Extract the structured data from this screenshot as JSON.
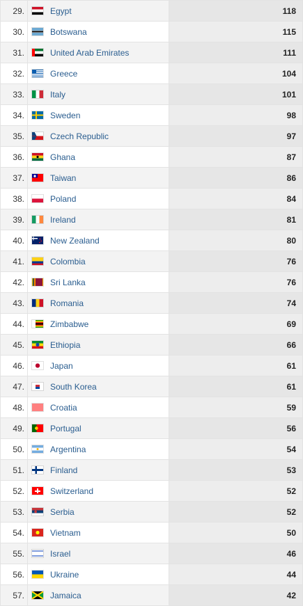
{
  "rows": [
    {
      "rank": "29.",
      "country": "Egypt",
      "value": "118",
      "flag": "egypt-flag-icon",
      "colors": [
        "#ce1126",
        "#ffffff",
        "#000000"
      ]
    },
    {
      "rank": "30.",
      "country": "Botswana",
      "value": "115",
      "flag": "botswana-flag-icon",
      "colors": [
        "#6da9d2",
        "#ffffff",
        "#000000"
      ]
    },
    {
      "rank": "31.",
      "country": "United Arab Emirates",
      "value": "111",
      "flag": "uae-flag-icon",
      "colors": [
        "#ff0000",
        "#00732f",
        "#ffffff",
        "#000000"
      ]
    },
    {
      "rank": "32.",
      "country": "Greece",
      "value": "104",
      "flag": "greece-flag-icon",
      "colors": [
        "#0d5eaf",
        "#ffffff"
      ]
    },
    {
      "rank": "33.",
      "country": "Italy",
      "value": "101",
      "flag": "italy-flag-icon",
      "colors": [
        "#009246",
        "#ffffff",
        "#ce2b37"
      ]
    },
    {
      "rank": "34.",
      "country": "Sweden",
      "value": "98",
      "flag": "sweden-flag-icon",
      "colors": [
        "#006aa7",
        "#fecc00"
      ]
    },
    {
      "rank": "35.",
      "country": "Czech Republic",
      "value": "97",
      "flag": "czech-flag-icon",
      "colors": [
        "#ffffff",
        "#d7141a",
        "#11457e"
      ]
    },
    {
      "rank": "36.",
      "country": "Ghana",
      "value": "87",
      "flag": "ghana-flag-icon",
      "colors": [
        "#ce1126",
        "#fcd116",
        "#006b3f"
      ]
    },
    {
      "rank": "37.",
      "country": "Taiwan",
      "value": "86",
      "flag": "taiwan-flag-icon",
      "colors": [
        "#fe0000",
        "#000095"
      ]
    },
    {
      "rank": "38.",
      "country": "Poland",
      "value": "84",
      "flag": "poland-flag-icon",
      "colors": [
        "#ffffff",
        "#dc143c"
      ]
    },
    {
      "rank": "39.",
      "country": "Ireland",
      "value": "81",
      "flag": "ireland-flag-icon",
      "colors": [
        "#169b62",
        "#ffffff",
        "#ff883e"
      ]
    },
    {
      "rank": "40.",
      "country": "New Zealand",
      "value": "80",
      "flag": "new-zealand-flag-icon",
      "colors": [
        "#012169",
        "#c8102e"
      ]
    },
    {
      "rank": "41.",
      "country": "Colombia",
      "value": "76",
      "flag": "colombia-flag-icon",
      "colors": [
        "#fcd116",
        "#003893",
        "#ce1126"
      ]
    },
    {
      "rank": "42.",
      "country": "Sri Lanka",
      "value": "76",
      "flag": "sri-lanka-flag-icon",
      "colors": [
        "#ffb700",
        "#8d153a",
        "#00534e",
        "#eb7400"
      ]
    },
    {
      "rank": "43.",
      "country": "Romania",
      "value": "74",
      "flag": "romania-flag-icon",
      "colors": [
        "#002b7f",
        "#fcd116",
        "#ce1126"
      ]
    },
    {
      "rank": "44.",
      "country": "Zimbabwe",
      "value": "69",
      "flag": "zimbabwe-flag-icon",
      "colors": [
        "#319208",
        "#ffd200",
        "#de2010",
        "#000000"
      ]
    },
    {
      "rank": "45.",
      "country": "Ethiopia",
      "value": "66",
      "flag": "ethiopia-flag-icon",
      "colors": [
        "#078930",
        "#fcdd09",
        "#da121a"
      ]
    },
    {
      "rank": "46.",
      "country": "Japan",
      "value": "61",
      "flag": "japan-flag-icon",
      "colors": [
        "#ffffff",
        "#bc002d"
      ]
    },
    {
      "rank": "47.",
      "country": "South Korea",
      "value": "61",
      "flag": "south-korea-flag-icon",
      "colors": [
        "#ffffff",
        "#cd2e3a",
        "#0047a0"
      ]
    },
    {
      "rank": "48.",
      "country": "Croatia",
      "value": "59",
      "flag": "croatia-flag-icon",
      "colors": [
        "#ff0000",
        "#ffffff",
        "#171796"
      ]
    },
    {
      "rank": "49.",
      "country": "Portugal",
      "value": "56",
      "flag": "portugal-flag-icon",
      "colors": [
        "#006600",
        "#ff0000",
        "#ffcc00"
      ]
    },
    {
      "rank": "50.",
      "country": "Argentina",
      "value": "54",
      "flag": "argentina-flag-icon",
      "colors": [
        "#74acdf",
        "#ffffff",
        "#f6b40e"
      ]
    },
    {
      "rank": "51.",
      "country": "Finland",
      "value": "53",
      "flag": "finland-flag-icon",
      "colors": [
        "#ffffff",
        "#003580"
      ]
    },
    {
      "rank": "52.",
      "country": "Switzerland",
      "value": "52",
      "flag": "switzerland-flag-icon",
      "colors": [
        "#ff0000",
        "#ffffff"
      ]
    },
    {
      "rank": "53.",
      "country": "Serbia",
      "value": "52",
      "flag": "serbia-flag-icon",
      "colors": [
        "#c6363c",
        "#0c4076",
        "#ffffff"
      ]
    },
    {
      "rank": "54.",
      "country": "Vietnam",
      "value": "50",
      "flag": "vietnam-flag-icon",
      "colors": [
        "#da251d",
        "#ffff00"
      ]
    },
    {
      "rank": "55.",
      "country": "Israel",
      "value": "46",
      "flag": "israel-flag-icon",
      "colors": [
        "#ffffff",
        "#0038b8"
      ]
    },
    {
      "rank": "56.",
      "country": "Ukraine",
      "value": "44",
      "flag": "ukraine-flag-icon",
      "colors": [
        "#0057b7",
        "#ffd700"
      ]
    },
    {
      "rank": "57.",
      "country": "Jamaica",
      "value": "42",
      "flag": "jamaica-flag-icon",
      "colors": [
        "#009b3a",
        "#fed100",
        "#000000"
      ]
    }
  ]
}
